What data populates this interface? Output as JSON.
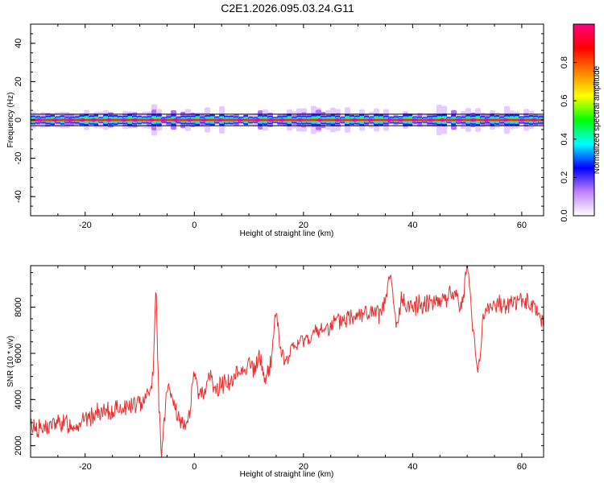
{
  "title": "C2E1.2026.095.03.24.G11",
  "chart_data": [
    {
      "type": "heatmap",
      "xlabel": "Height of straight line (km)",
      "ylabel": "Frequency (Hz)",
      "xlim": [
        -30,
        64
      ],
      "ylim": [
        -50,
        50
      ],
      "xticks": [
        -20,
        0,
        20,
        40,
        60
      ],
      "yticks": [
        -40,
        -20,
        0,
        20,
        40
      ],
      "colorbar": {
        "label": "Normalized spectral amplitude",
        "range": [
          0,
          1
        ],
        "ticks": [
          0.0,
          0.2,
          0.4,
          0.6,
          0.8
        ],
        "tick_labels": [
          "0.0",
          "0.2",
          "0.4",
          "0.6",
          "0.8"
        ],
        "colors": [
          "#ffffff",
          "#c080ff",
          "#0000ff",
          "#00ffff",
          "#00ff00",
          "#ffff00",
          "#ff8000",
          "#ff0000",
          "#ff0080"
        ]
      },
      "ridge_frequency_hz": 0,
      "ridge_band_hz": [
        -3,
        3
      ]
    },
    {
      "type": "line",
      "xlabel": "Height of straight line (km)",
      "ylabel": "SNR (10 * v/v)",
      "xlim": [
        -30,
        64
      ],
      "ylim": [
        1500,
        9800
      ],
      "xticks": [
        -20,
        0,
        20,
        40,
        60
      ],
      "yticks": [
        2000,
        4000,
        6000,
        8000
      ],
      "color": "#e83030",
      "series": [
        {
          "x": [
            -30,
            -28,
            -26,
            -24,
            -22,
            -20,
            -18,
            -16,
            -14,
            -12,
            -10,
            -9,
            -8,
            -7.5,
            -7,
            -6.5,
            -6,
            -5,
            -4,
            -3,
            -2,
            -1,
            0,
            1,
            2,
            3,
            4,
            5,
            6,
            7,
            8,
            9,
            10,
            11,
            12,
            13,
            14,
            15,
            16,
            17,
            18,
            20,
            22,
            24,
            26,
            28,
            30,
            32,
            34,
            35,
            36,
            37,
            38,
            40,
            42,
            44,
            46,
            48,
            49,
            50,
            51,
            52,
            53,
            54,
            56,
            58,
            60,
            62,
            64
          ],
          "y": [
            2900,
            2700,
            2900,
            3000,
            2900,
            3100,
            3400,
            3400,
            3600,
            3700,
            3800,
            4200,
            4400,
            5500,
            9000,
            3800,
            1600,
            4500,
            4000,
            3200,
            2700,
            3300,
            5000,
            4200,
            4500,
            5000,
            4300,
            4700,
            4800,
            4700,
            5200,
            5300,
            5600,
            5200,
            5900,
            4700,
            5600,
            7900,
            5800,
            5700,
            6200,
            6600,
            6800,
            7100,
            7300,
            7500,
            7800,
            7700,
            7700,
            8200,
            9400,
            7000,
            8300,
            8000,
            8200,
            8300,
            8400,
            8600,
            8000,
            9800,
            7300,
            5200,
            7600,
            8000,
            8100,
            8200,
            8300,
            8000,
            7400
          ]
        }
      ]
    }
  ]
}
